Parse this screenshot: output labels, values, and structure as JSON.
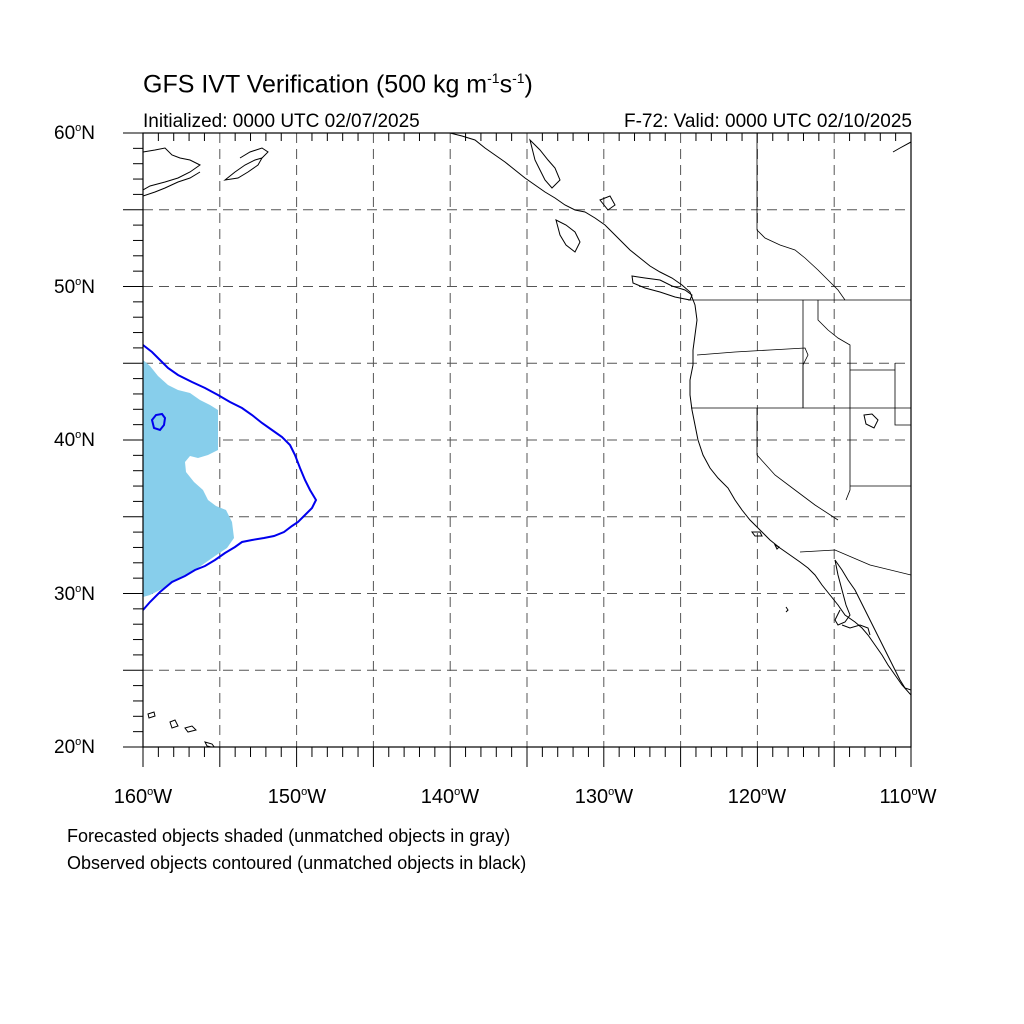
{
  "title": {
    "main": "GFS IVT Verification (500 kg m",
    "sup1": "-1",
    "mid": "s",
    "sup2": "-1",
    "end": ")"
  },
  "subtitle_left": "Initialized: 0000 UTC 02/07/2025",
  "subtitle_right": "F-72: Valid: 0000 UTC 02/10/2025",
  "lat_labels": [
    {
      "num": "60",
      "unit": "N"
    },
    {
      "num": "50",
      "unit": "N"
    },
    {
      "num": "40",
      "unit": "N"
    },
    {
      "num": "30",
      "unit": "N"
    },
    {
      "num": "20",
      "unit": "N"
    }
  ],
  "lon_labels": [
    {
      "num": "160",
      "unit": "W"
    },
    {
      "num": "150",
      "unit": "W"
    },
    {
      "num": "140",
      "unit": "W"
    },
    {
      "num": "130",
      "unit": "W"
    },
    {
      "num": "120",
      "unit": "W"
    },
    {
      "num": "110",
      "unit": "W"
    }
  ],
  "caption_1": "Forecasted objects shaded (unmatched objects in gray)",
  "caption_2": "Observed objects contoured (unmatched objects in black)",
  "colors": {
    "forecast_fill": "#87ceeb",
    "observed_contour": "#0000ee",
    "coastline": "#000000",
    "grid": "#555555"
  },
  "map_extent": {
    "lon": [
      -160,
      -110
    ],
    "lat": [
      20,
      60
    ],
    "grid_step_deg": 5
  }
}
